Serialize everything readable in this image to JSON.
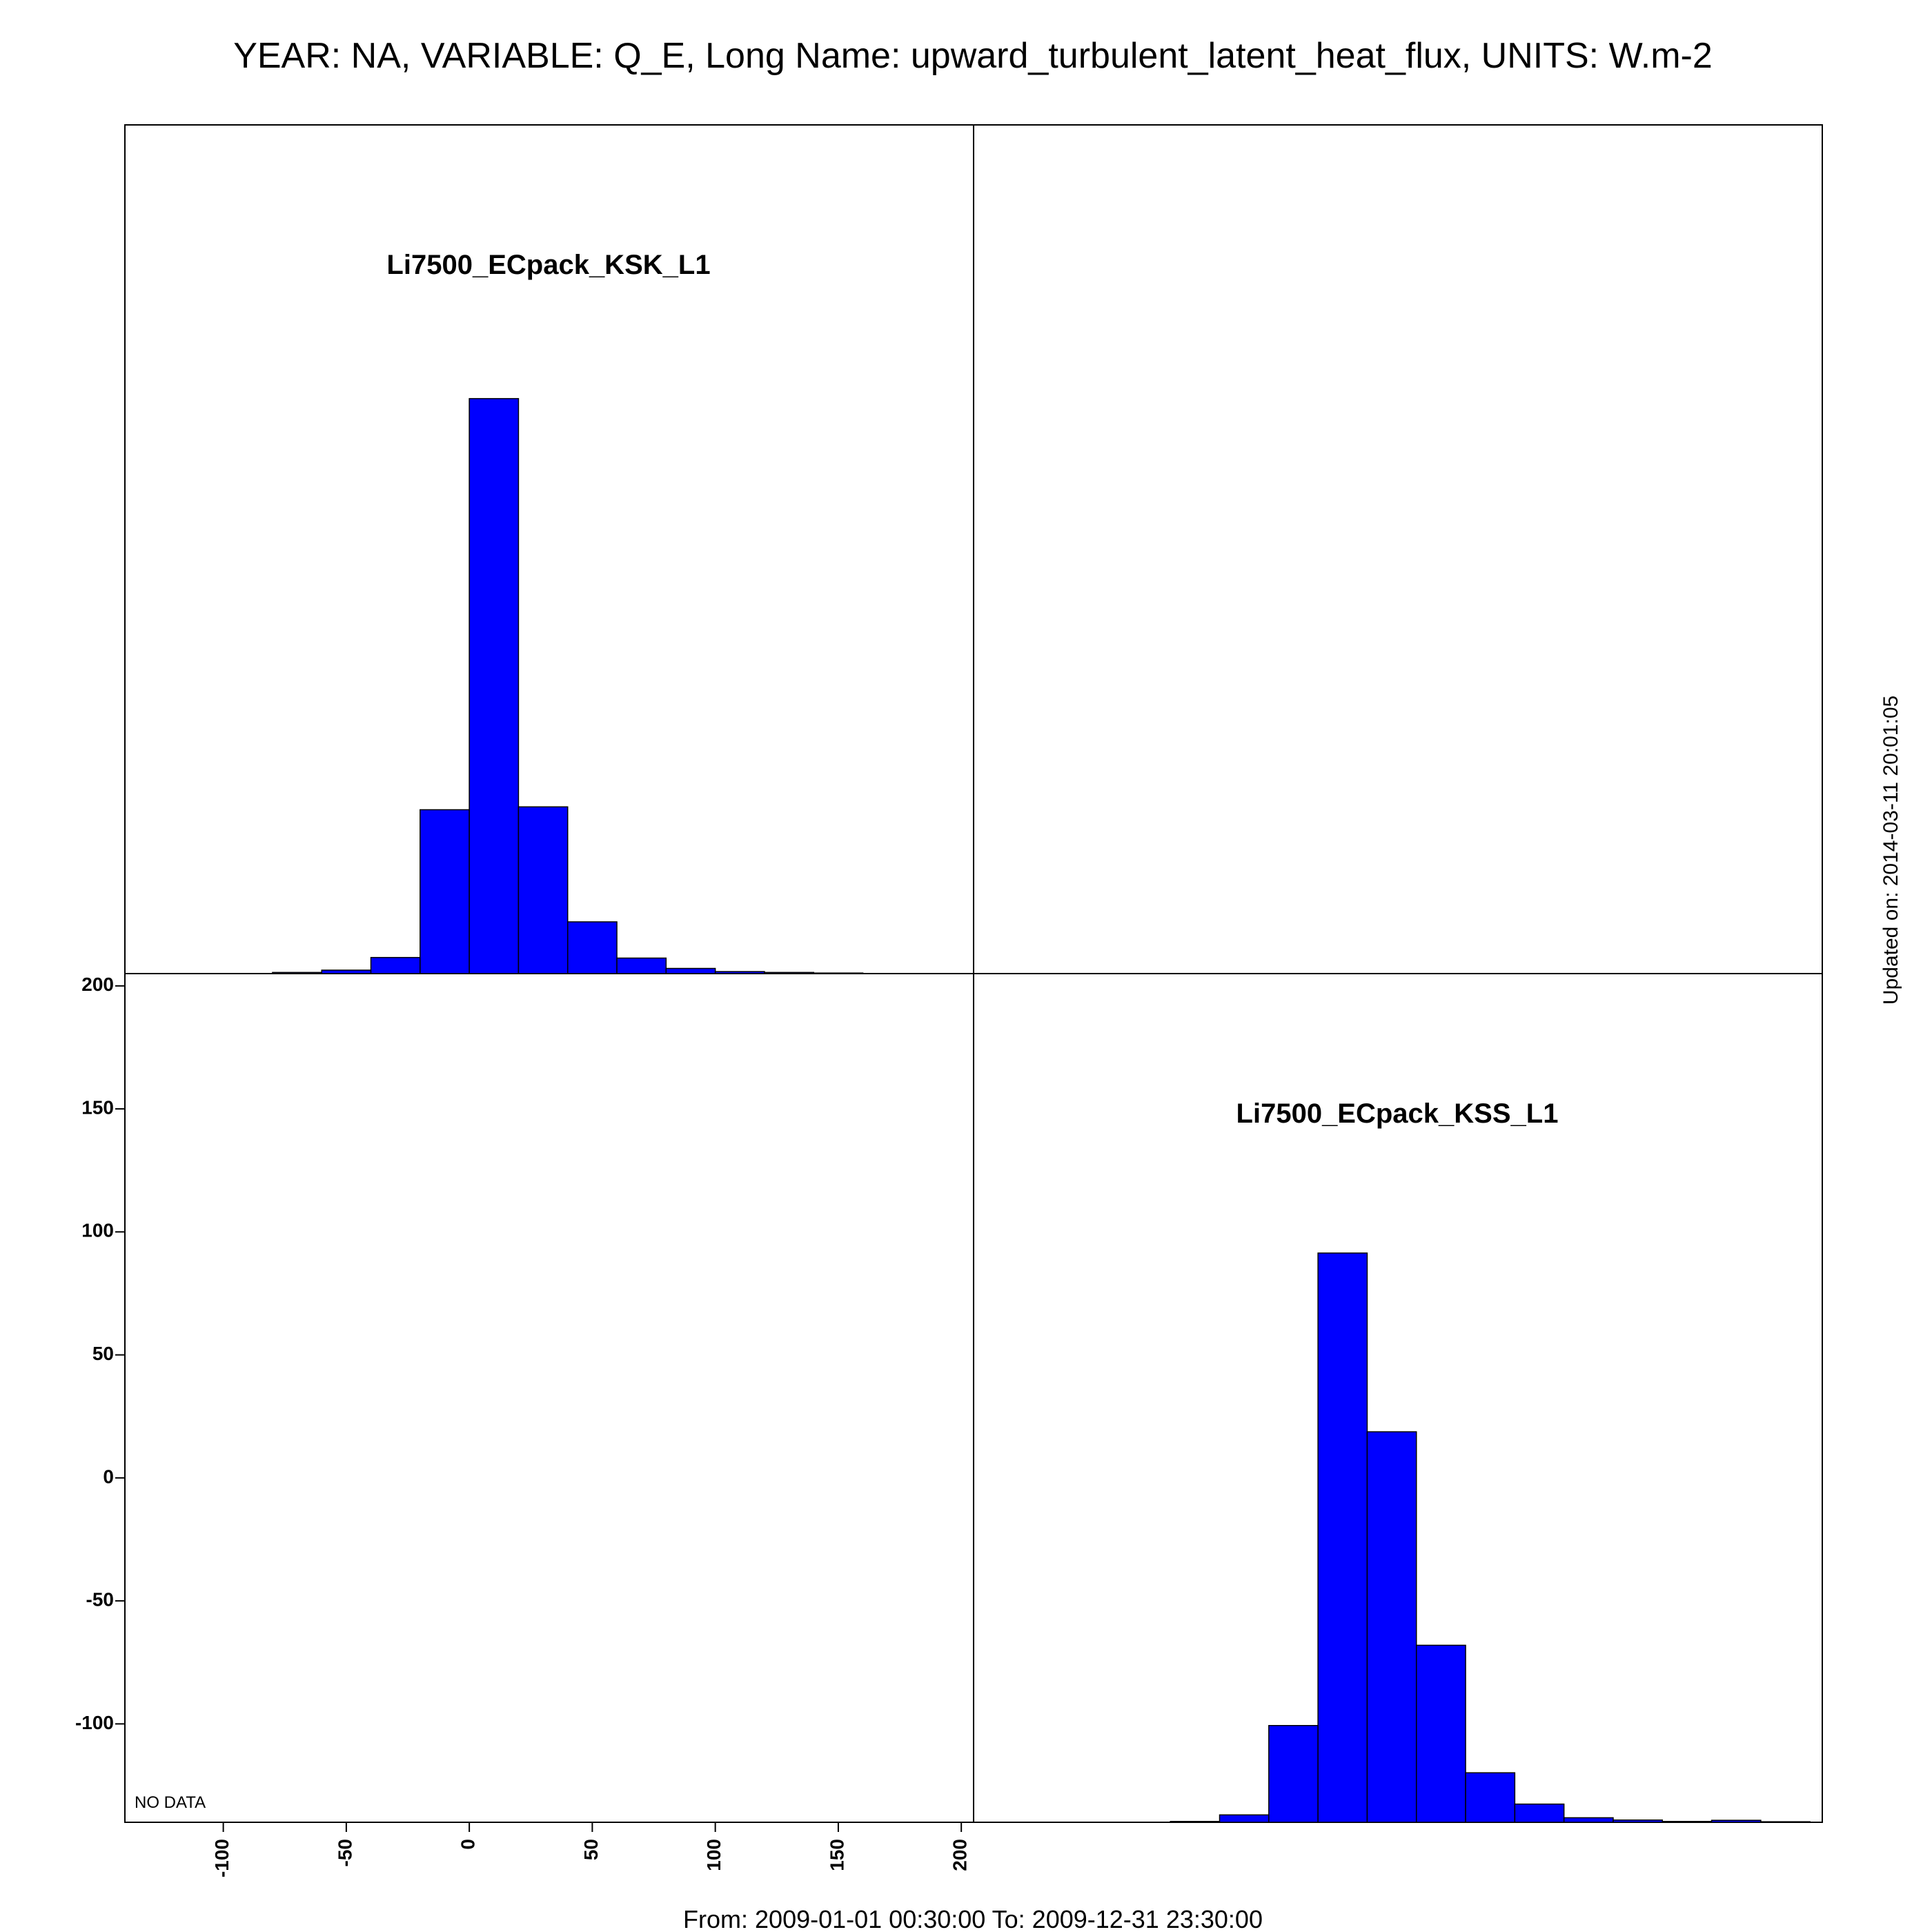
{
  "title": "YEAR: NA, VARIABLE: Q_E, Long Name: upward_turbulent_latent_heat_flux, UNITS: W.m-2",
  "footer": "From: 2009-01-01 00:30:00 To: 2009-12-31 23:30:00",
  "updated": "Updated on: 2014-03-11 20:01:05",
  "no_data_label": "NO DATA",
  "colors": {
    "bar_fill": "#0000ff",
    "bar_stroke": "#000000",
    "frame": "#000000"
  },
  "chart_data": [
    {
      "type": "bar",
      "panel": "top-left",
      "title": "Li7500_ECpack_KSK_L1",
      "bin_width": 20,
      "xlim": [
        -140,
        205
      ],
      "bins": [
        -80,
        -60,
        -40,
        -20,
        0,
        20,
        40,
        60,
        80,
        100,
        120,
        140
      ],
      "values": [
        0.2,
        0.6,
        2.8,
        28.5,
        100,
        29,
        9,
        2.7,
        0.9,
        0.35,
        0.2,
        0.1
      ],
      "ylim": [
        0,
        120
      ],
      "note": "relative counts (no y-axis shown)"
    },
    {
      "type": "bar",
      "panel": "top-right",
      "title": "",
      "values": []
    },
    {
      "type": "bar",
      "panel": "bottom-left",
      "title": "",
      "xlim": [
        -140,
        205
      ],
      "ylim": [
        -140,
        205
      ],
      "xticks": [
        -100,
        -50,
        0,
        50,
        100,
        150,
        200
      ],
      "yticks": [
        -100,
        -50,
        0,
        50,
        100,
        150,
        200
      ],
      "no_data": true
    },
    {
      "type": "bar",
      "panel": "bottom-right",
      "title": "Li7500_ECpack_KSS_L1",
      "bin_width": 20,
      "xlim": [
        -140,
        205
      ],
      "bins": [
        -60,
        -40,
        -20,
        0,
        20,
        40,
        60,
        80,
        100,
        120,
        140,
        160,
        180
      ],
      "values": [
        0.15,
        1.3,
        17,
        100,
        68.6,
        31.1,
        8.7,
        3.2,
        0.8,
        0.4,
        0.15,
        0.35,
        0.1
      ],
      "ylim": [
        0,
        120
      ],
      "note": "relative counts (no y-axis shown)"
    }
  ]
}
